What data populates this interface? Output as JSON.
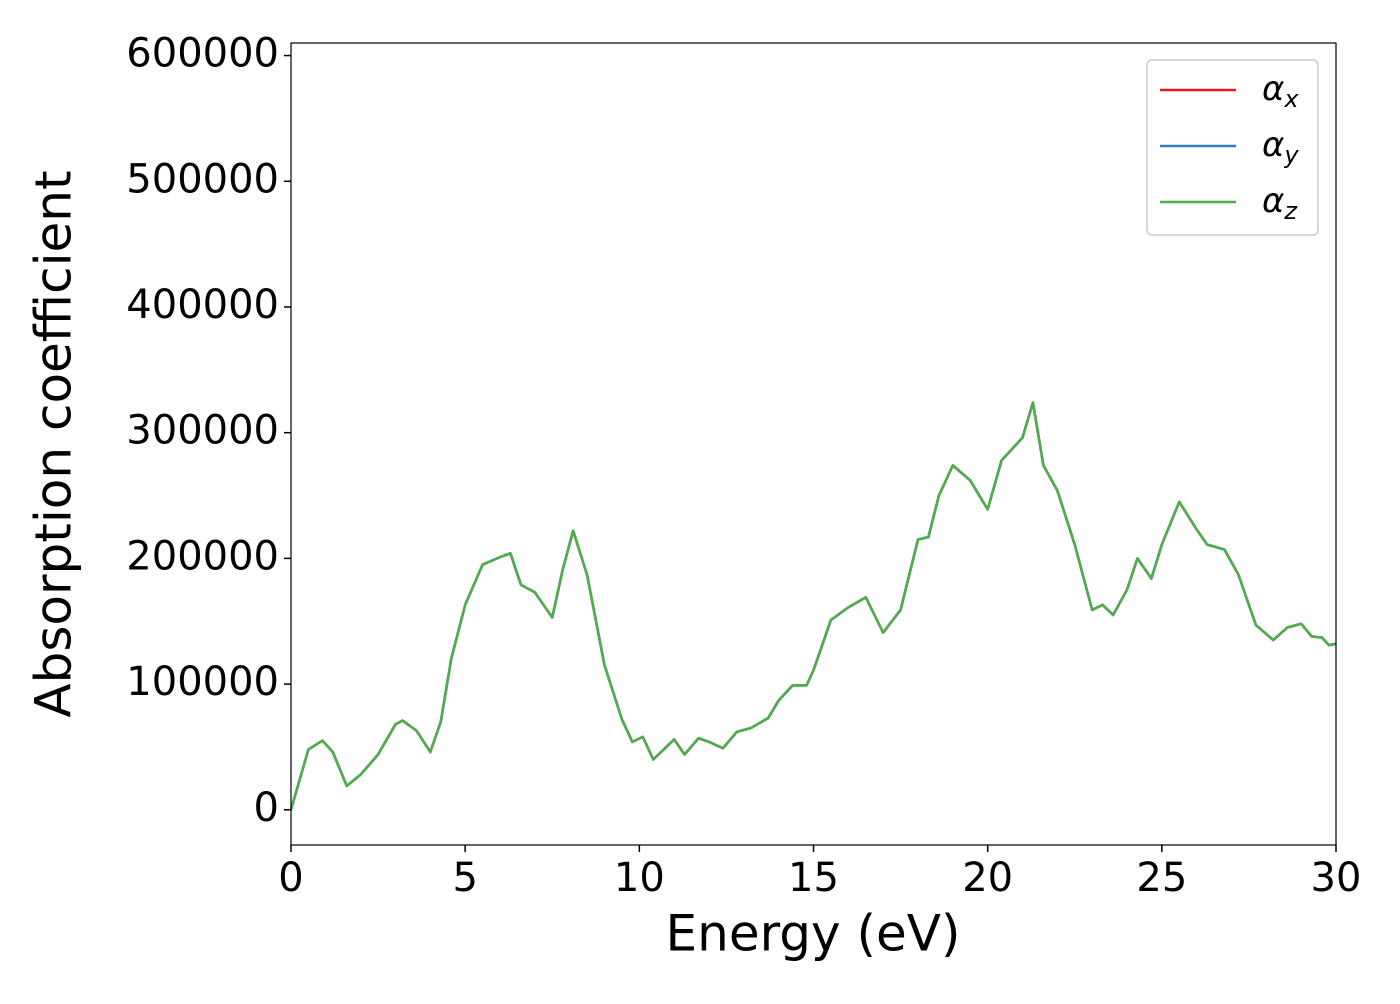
{
  "chart_data": {
    "type": "line",
    "xlabel": "Energy (eV)",
    "ylabel": "Absorption coefficient",
    "x": [
      0,
      0.25,
      0.5,
      0.9,
      1.2,
      1.6,
      2.0,
      2.5,
      3.0,
      3.2,
      3.6,
      4.0,
      4.3,
      4.6,
      5.0,
      5.5,
      6.0,
      6.3,
      6.6,
      7.0,
      7.5,
      7.8,
      8.1,
      8.5,
      9.0,
      9.5,
      9.8,
      10.1,
      10.4,
      10.7,
      11.0,
      11.3,
      11.7,
      12.0,
      12.4,
      12.8,
      13.2,
      13.7,
      14.0,
      14.4,
      14.8,
      15.0,
      15.5,
      16.0,
      16.5,
      17.0,
      17.5,
      18.0,
      18.3,
      18.6,
      19.0,
      19.5,
      20.0,
      20.4,
      20.8,
      21.0,
      21.3,
      21.6,
      22.0,
      22.5,
      23.0,
      23.3,
      23.6,
      24.0,
      24.3,
      24.7,
      25.0,
      25.5,
      26.0,
      26.3,
      26.8,
      27.2,
      27.7,
      28.2,
      28.6,
      29.0,
      29.3,
      29.6,
      29.8,
      30.0
    ],
    "series": [
      {
        "name": "αx",
        "color": "#e41a1c",
        "values": [
          0,
          24000,
          48000,
          55000,
          46000,
          19000,
          28000,
          44000,
          68000,
          71000,
          63000,
          46000,
          70000,
          120000,
          163000,
          195000,
          201000,
          204000,
          179000,
          173000,
          153000,
          191000,
          222000,
          187000,
          115000,
          72000,
          54000,
          58000,
          40000,
          48000,
          56000,
          44000,
          57000,
          54000,
          49000,
          62000,
          65000,
          73000,
          87000,
          99000,
          99000,
          111000,
          151000,
          161000,
          169000,
          141000,
          159000,
          215000,
          217000,
          250000,
          274000,
          262000,
          239000,
          278000,
          290000,
          296000,
          324000,
          274000,
          254000,
          211000,
          159000,
          163000,
          155000,
          175000,
          200000,
          184000,
          211000,
          245000,
          223000,
          211000,
          207000,
          187000,
          147000,
          135000,
          145000,
          148000,
          138000,
          137000,
          131000,
          132000
        ]
      },
      {
        "name": "αy",
        "color": "#377eb8",
        "values": [
          0,
          24000,
          48000,
          55000,
          46000,
          19000,
          28000,
          44000,
          68000,
          71000,
          63000,
          46000,
          70000,
          120000,
          163000,
          195000,
          201000,
          204000,
          179000,
          173000,
          153000,
          191000,
          222000,
          187000,
          115000,
          72000,
          54000,
          58000,
          40000,
          48000,
          56000,
          44000,
          57000,
          54000,
          49000,
          62000,
          65000,
          73000,
          87000,
          99000,
          99000,
          111000,
          151000,
          161000,
          169000,
          141000,
          159000,
          215000,
          217000,
          250000,
          274000,
          262000,
          239000,
          278000,
          290000,
          296000,
          324000,
          274000,
          254000,
          211000,
          159000,
          163000,
          155000,
          175000,
          200000,
          184000,
          211000,
          245000,
          223000,
          211000,
          207000,
          187000,
          147000,
          135000,
          145000,
          148000,
          138000,
          137000,
          131000,
          132000
        ]
      },
      {
        "name": "αz",
        "color": "#4daf4a",
        "values": [
          0,
          24000,
          48000,
          55000,
          46000,
          19000,
          28000,
          44000,
          68000,
          71000,
          63000,
          46000,
          70000,
          120000,
          163000,
          195000,
          201000,
          204000,
          179000,
          173000,
          153000,
          191000,
          222000,
          187000,
          115000,
          72000,
          54000,
          58000,
          40000,
          48000,
          56000,
          44000,
          57000,
          54000,
          49000,
          62000,
          65000,
          73000,
          87000,
          99000,
          99000,
          111000,
          151000,
          161000,
          169000,
          141000,
          159000,
          215000,
          217000,
          250000,
          274000,
          262000,
          239000,
          278000,
          290000,
          296000,
          324000,
          274000,
          254000,
          211000,
          159000,
          163000,
          155000,
          175000,
          200000,
          184000,
          211000,
          245000,
          223000,
          211000,
          207000,
          187000,
          147000,
          135000,
          145000,
          148000,
          138000,
          137000,
          131000,
          132000
        ]
      }
    ],
    "xlim": [
      0,
      30
    ],
    "xticks": [
      0,
      5,
      10,
      15,
      20,
      25,
      30
    ],
    "ylim": [
      -28000,
      610000
    ],
    "yticks": [
      0,
      100000,
      200000,
      300000,
      400000,
      500000,
      600000
    ],
    "legend": "upper right"
  }
}
